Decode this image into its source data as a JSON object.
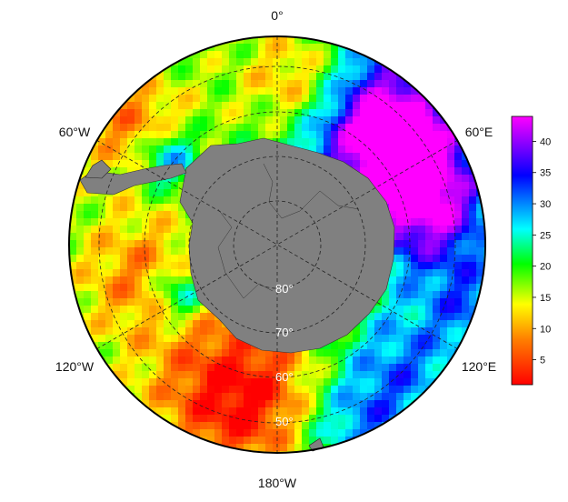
{
  "map": {
    "projection": "south-polar-stereographic",
    "land_color": "#808080",
    "ocean_colormap": "rainbow",
    "graticule_style": "dashed",
    "longitude_labels": [
      "0°",
      "60°E",
      "120°E",
      "180°W",
      "120°W",
      "60°W"
    ],
    "latitude_labels": [
      "80°",
      "70°",
      "60°",
      "50°"
    ]
  },
  "colorbar": {
    "ticks": [
      "5",
      "10",
      "15",
      "20",
      "25",
      "30",
      "35",
      "40"
    ],
    "tick_values": [
      5,
      10,
      15,
      20,
      25,
      30,
      35,
      40
    ],
    "min": 1,
    "max": 44,
    "colors": [
      "#ff0000",
      "#ff8000",
      "#ffff00",
      "#00ff00",
      "#00ffff",
      "#0000ff",
      "#ff00ff"
    ]
  }
}
